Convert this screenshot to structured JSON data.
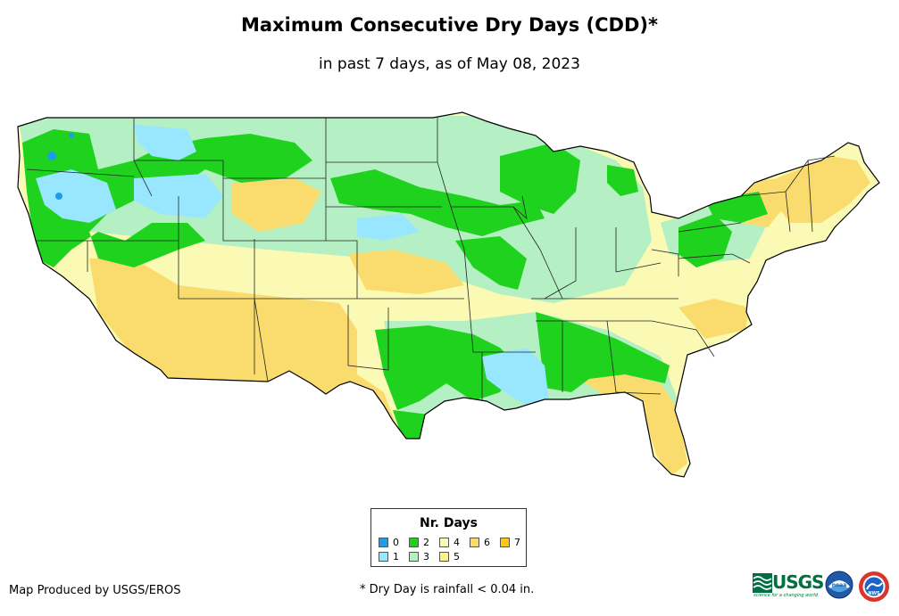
{
  "header": {
    "title": "Maximum Consecutive Dry Days (CDD)*",
    "subtitle": "in past 7 days, as of May 08, 2023"
  },
  "legend": {
    "title": "Nr. Days",
    "items": [
      {
        "label": "0",
        "color": "#1f9bea"
      },
      {
        "label": "1",
        "color": "#99e6ff"
      },
      {
        "label": "2",
        "color": "#1ed21e"
      },
      {
        "label": "3",
        "color": "#b4f0c3"
      },
      {
        "label": "4",
        "color": "#fafab4"
      },
      {
        "label": "5",
        "color": "#fff08c"
      },
      {
        "label": "6",
        "color": "#fadc6e"
      },
      {
        "label": "7",
        "color": "#ffc814"
      }
    ]
  },
  "footer": {
    "credit": "Map Produced by USGS/EROS",
    "footnote": "* Dry Day is rainfall < 0.04 in."
  },
  "logos": {
    "usgs": {
      "text": "USGS",
      "tagline": "science for a changing world",
      "color": "#006f41"
    },
    "noaa": {
      "text": "noaa"
    },
    "nws": {
      "text": "NWS"
    }
  }
}
